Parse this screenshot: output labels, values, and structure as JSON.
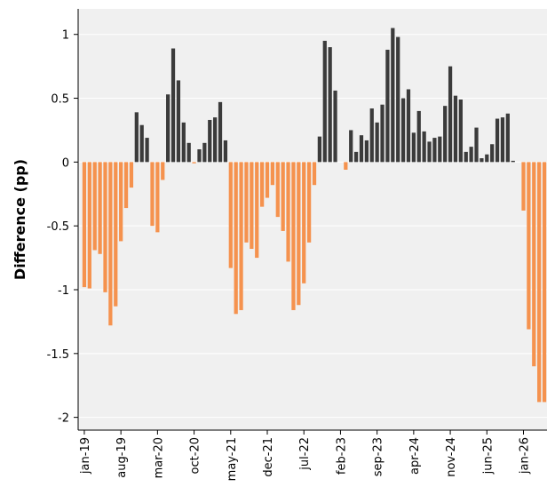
{
  "chart_data": {
    "type": "bar",
    "y_label": "Difference (pp)",
    "categories": [
      "jan-19",
      null,
      null,
      null,
      null,
      null,
      null,
      "aug-19",
      null,
      null,
      null,
      null,
      null,
      null,
      "mar-20",
      null,
      null,
      null,
      null,
      null,
      null,
      "oct-20",
      null,
      null,
      null,
      null,
      null,
      null,
      "may-21",
      null,
      null,
      null,
      null,
      null,
      null,
      "dec-21",
      null,
      null,
      null,
      null,
      null,
      null,
      "jul-22",
      null,
      null,
      null,
      null,
      null,
      null,
      "feb-23",
      null,
      null,
      null,
      null,
      null,
      null,
      "sep-23",
      null,
      null,
      null,
      null,
      null,
      null,
      "apr-24",
      null,
      null,
      null,
      null,
      null,
      null,
      "nov-24",
      null,
      null,
      null,
      null,
      null,
      null,
      "jun-25",
      null,
      null,
      null,
      null,
      null,
      null,
      "jan-26",
      null,
      null,
      null,
      null
    ],
    "values": [
      -0.98,
      -0.99,
      -0.69,
      -0.72,
      -1.02,
      -1.28,
      -1.13,
      -0.62,
      -0.36,
      -0.2,
      0.39,
      0.29,
      0.19,
      -0.5,
      -0.55,
      -0.14,
      0.53,
      0.89,
      0.64,
      0.31,
      0.15,
      -0.01,
      0.1,
      0.15,
      0.33,
      0.35,
      0.47,
      0.17,
      -0.83,
      -1.19,
      -1.16,
      -0.63,
      -0.68,
      -0.75,
      -0.35,
      -0.28,
      -0.18,
      -0.43,
      -0.54,
      -0.78,
      -1.16,
      -1.12,
      -0.95,
      -0.63,
      -0.18,
      0.2,
      0.95,
      0.9,
      0.56,
      0.0,
      -0.06,
      0.25,
      0.08,
      0.21,
      0.17,
      0.42,
      0.31,
      0.45,
      0.88,
      1.05,
      0.98,
      0.5,
      0.57,
      0.23,
      0.4,
      0.24,
      0.16,
      0.19,
      0.2,
      0.44,
      0.75,
      0.52,
      0.49,
      0.08,
      0.12,
      0.27,
      0.03,
      0.06,
      0.14,
      0.34,
      0.35,
      0.38,
      0.01,
      0.0,
      -0.38,
      -1.31,
      -1.6,
      -1.88,
      -1.88
    ],
    "color": "#3b3b3b",
    "negative_color": "#f5924e",
    "ylim": [
      -2.1,
      1.2
    ],
    "yticks": [
      -2,
      -1.5,
      -1,
      -0.5,
      0,
      0.5,
      1
    ],
    "grid": true
  }
}
